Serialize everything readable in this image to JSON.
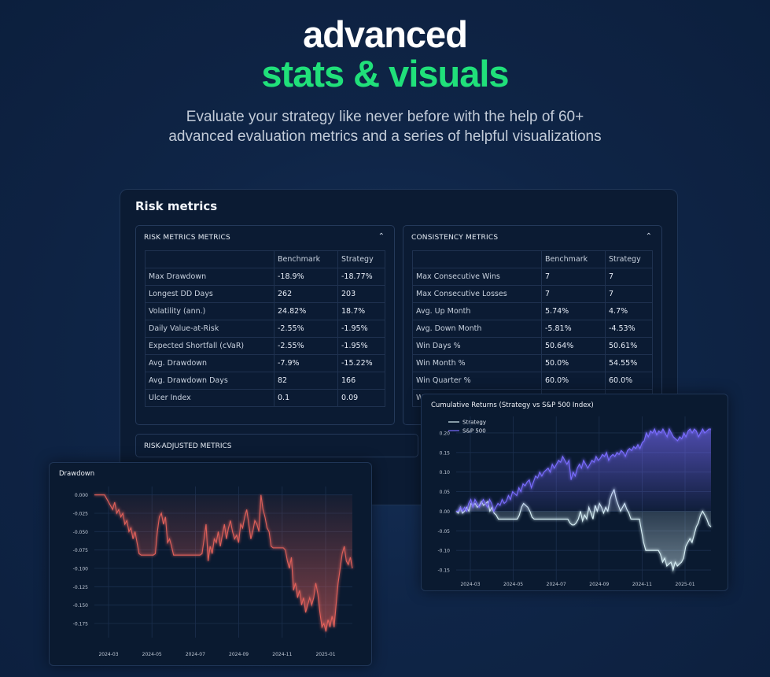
{
  "hero": {
    "line1": "advanced",
    "line2": "stats & visuals",
    "subtitle_line1": "Evaluate your strategy like never before with the help of 60+",
    "subtitle_line2": "advanced evaluation metrics and a series of helpful visualizations"
  },
  "panel": {
    "title": "Risk metrics",
    "collapsed_section": "RISK-ADJUSTED METRICS"
  },
  "risk_card": {
    "title": "RISK METRICS METRICS",
    "headers": [
      "",
      "Benchmark",
      "Strategy"
    ],
    "rows": [
      [
        "Max Drawdown",
        "-18.9%",
        "-18.77%"
      ],
      [
        "Longest DD Days",
        "262",
        "203"
      ],
      [
        "Volatility (ann.)",
        "24.82%",
        "18.7%"
      ],
      [
        "Daily Value-at-Risk",
        "-2.55%",
        "-1.95%"
      ],
      [
        "Expected Shortfall (cVaR)",
        "-2.55%",
        "-1.95%"
      ],
      [
        "Avg. Drawdown",
        "-7.9%",
        "-15.22%"
      ],
      [
        "Avg. Drawdown Days",
        "82",
        "166"
      ],
      [
        "Ulcer Index",
        "0.1",
        "0.09"
      ]
    ]
  },
  "consistency_card": {
    "title": "CONSISTENCY METRICS",
    "headers": [
      "",
      "Benchmark",
      "Strategy"
    ],
    "rows": [
      [
        "Max Consecutive Wins",
        "7",
        "7"
      ],
      [
        "Max Consecutive Losses",
        "7",
        "7"
      ],
      [
        "Avg. Up Month",
        "5.74%",
        "4.7%"
      ],
      [
        "Avg. Down Month",
        "-5.81%",
        "-4.53%"
      ],
      [
        "Win Days %",
        "50.64%",
        "50.61%"
      ],
      [
        "Win Month %",
        "50.0%",
        "54.55%"
      ],
      [
        "Win Quarter %",
        "60.0%",
        "60.0%"
      ],
      [
        "Wi",
        "",
        ""
      ]
    ]
  },
  "colors": {
    "accent_green": "#20e07a",
    "drawdown_line": "#e0605a",
    "strategy_line": "#d8f0f6",
    "sp500_line": "#7a6cff"
  },
  "chart_data": [
    {
      "type": "area",
      "title": "Drawdown",
      "x_ticks": [
        "2024-03",
        "2024-05",
        "2024-07",
        "2024-09",
        "2024-11",
        "2025-01"
      ],
      "y_ticks": [
        "0.000",
        "-0.025",
        "-0.050",
        "-0.075",
        "-0.100",
        "-0.125",
        "-0.150",
        "-0.175"
      ],
      "ylim": [
        -0.19,
        0.005
      ],
      "series": [
        {
          "values": [
            0.0,
            0.0,
            0.0,
            0.0,
            0.0,
            0.0,
            -0.005,
            -0.01,
            -0.015,
            -0.02,
            -0.01,
            -0.025,
            -0.02,
            -0.03,
            -0.025,
            -0.04,
            -0.035,
            -0.05,
            -0.045,
            -0.06,
            -0.05,
            -0.065,
            -0.08,
            -0.082,
            -0.082,
            -0.082,
            -0.082,
            -0.082,
            -0.082,
            -0.082,
            -0.08,
            -0.05,
            -0.03,
            -0.025,
            -0.04,
            -0.03,
            -0.065,
            -0.06,
            -0.07,
            -0.082,
            -0.082,
            -0.082,
            -0.082,
            -0.082,
            -0.082,
            -0.082,
            -0.082,
            -0.082,
            -0.082,
            -0.082,
            -0.082,
            -0.082,
            -0.082,
            -0.08,
            -0.06,
            -0.04,
            -0.09,
            -0.07,
            -0.08,
            -0.06,
            -0.065,
            -0.05,
            -0.07,
            -0.055,
            -0.04,
            -0.06,
            -0.045,
            -0.035,
            -0.05,
            -0.06,
            -0.055,
            -0.065,
            -0.04,
            -0.045,
            -0.03,
            -0.02,
            -0.04,
            -0.06,
            -0.05,
            -0.035,
            -0.04,
            -0.05,
            0.0,
            -0.02,
            -0.03,
            -0.045,
            -0.05,
            -0.07,
            -0.072,
            -0.072,
            -0.072,
            -0.072,
            -0.072,
            -0.072,
            -0.075,
            -0.09,
            -0.1,
            -0.085,
            -0.13,
            -0.12,
            -0.14,
            -0.13,
            -0.15,
            -0.14,
            -0.16,
            -0.15,
            -0.14,
            -0.15,
            -0.14,
            -0.12,
            -0.135,
            -0.16,
            -0.18,
            -0.175,
            -0.186,
            -0.17,
            -0.18,
            -0.165,
            -0.18,
            -0.15,
            -0.12,
            -0.1,
            -0.08,
            -0.07,
            -0.09,
            -0.095,
            -0.085,
            -0.1
          ]
        }
      ]
    },
    {
      "type": "line",
      "title": "Cumulative Returns (Strategy vs S&P 500 Index)",
      "x_ticks": [
        "2024-03",
        "2024-05",
        "2024-07",
        "2024-09",
        "2024-11",
        "2025-01"
      ],
      "y_ticks": [
        "0.20",
        "0.15",
        "0.10",
        "0.05",
        "0.00",
        "-0.05",
        "-0.10",
        "-0.15"
      ],
      "ylim": [
        -0.17,
        0.23
      ],
      "legend": "top-left",
      "series": [
        {
          "name": "Strategy",
          "values": [
            0.0,
            -0.005,
            0.01,
            -0.005,
            0.0,
            0.01,
            0.0,
            0.02,
            0.015,
            0.02,
            0.01,
            0.015,
            0.025,
            0.015,
            0.02,
            0.025,
            0.0,
            0.01,
            -0.005,
            -0.01,
            -0.02,
            -0.02,
            -0.02,
            -0.02,
            -0.02,
            -0.02,
            -0.02,
            -0.02,
            -0.02,
            -0.02,
            -0.01,
            0.01,
            0.02,
            0.015,
            0.01,
            0.0,
            -0.015,
            -0.02,
            -0.02,
            -0.02,
            -0.02,
            -0.02,
            -0.02,
            -0.02,
            -0.02,
            -0.02,
            -0.02,
            -0.02,
            -0.02,
            -0.02,
            -0.02,
            -0.02,
            -0.02,
            -0.02,
            -0.03,
            -0.035,
            -0.035,
            -0.03,
            -0.02,
            0.0,
            -0.025,
            -0.01,
            -0.02,
            0.01,
            -0.005,
            -0.02,
            0.015,
            0.0,
            0.02,
            0.01,
            -0.005,
            0.01,
            0.0,
            0.03,
            0.045,
            0.055,
            0.03,
            0.015,
            0.0,
            0.01,
            0.02,
            0.005,
            -0.005,
            -0.02,
            -0.02,
            -0.02,
            -0.02,
            -0.02,
            -0.05,
            -0.08,
            -0.1,
            -0.1,
            -0.1,
            -0.1,
            -0.1,
            -0.1,
            -0.1,
            -0.11,
            -0.13,
            -0.12,
            -0.14,
            -0.135,
            -0.13,
            -0.15,
            -0.13,
            -0.14,
            -0.135,
            -0.13,
            -0.12,
            -0.09,
            -0.08,
            -0.07,
            -0.08,
            -0.06,
            -0.04,
            -0.03,
            -0.01,
            0.0,
            -0.01,
            -0.02,
            -0.035,
            -0.04
          ]
        },
        {
          "name": "S&P 500",
          "values": [
            0.0,
            0.0,
            0.01,
            0.0,
            0.01,
            0.0,
            0.02,
            0.03,
            0.01,
            0.03,
            0.02,
            0.01,
            0.02,
            0.03,
            0.02,
            0.01,
            0.03,
            0.02,
            0.0,
            0.01,
            0.02,
            0.015,
            0.03,
            0.02,
            0.025,
            0.04,
            0.03,
            0.05,
            0.045,
            0.04,
            0.06,
            0.05,
            0.07,
            0.065,
            0.075,
            0.08,
            0.06,
            0.075,
            0.09,
            0.085,
            0.1,
            0.09,
            0.1,
            0.105,
            0.11,
            0.1,
            0.12,
            0.11,
            0.12,
            0.13,
            0.125,
            0.14,
            0.13,
            0.12,
            0.13,
            0.08,
            0.1,
            0.09,
            0.11,
            0.12,
            0.11,
            0.13,
            0.12,
            0.11,
            0.12,
            0.13,
            0.125,
            0.14,
            0.13,
            0.135,
            0.145,
            0.14,
            0.15,
            0.13,
            0.14,
            0.145,
            0.14,
            0.15,
            0.145,
            0.155,
            0.15,
            0.14,
            0.155,
            0.16,
            0.155,
            0.165,
            0.16,
            0.17,
            0.16,
            0.175,
            0.18,
            0.2,
            0.19,
            0.205,
            0.2,
            0.21,
            0.195,
            0.205,
            0.2,
            0.21,
            0.2,
            0.19,
            0.21,
            0.2,
            0.19,
            0.185,
            0.18,
            0.19,
            0.185,
            0.2,
            0.19,
            0.205,
            0.21,
            0.2,
            0.21,
            0.205,
            0.19,
            0.2,
            0.21,
            0.2,
            0.205,
            0.21,
            0.21
          ]
        }
      ]
    }
  ]
}
